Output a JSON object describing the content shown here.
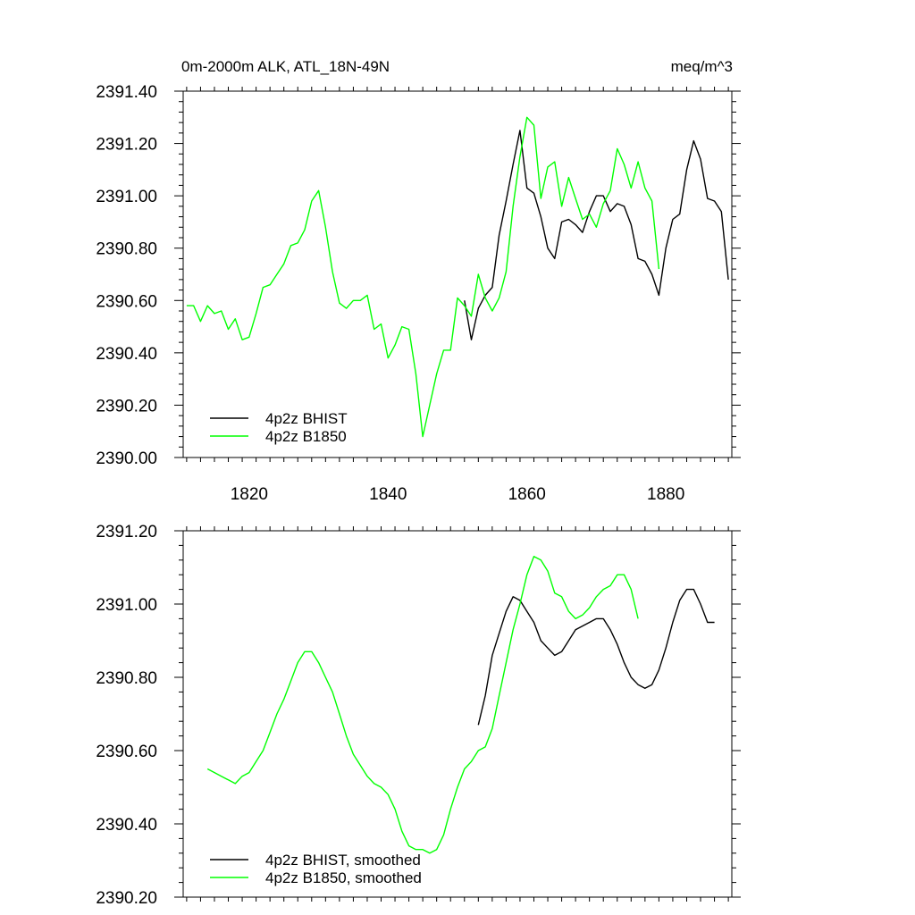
{
  "chart_data": [
    {
      "type": "line",
      "title_left": "0m-2000m ALK, ATL_18N-49N",
      "title_right": "meq/m^3",
      "xlim": [
        1810.5,
        1889.5
      ],
      "ylim": [
        2390.0,
        2391.4
      ],
      "xticks": [
        1820,
        1840,
        1860,
        1880
      ],
      "yticks": [
        "2390.00",
        "2390.20",
        "2390.40",
        "2390.60",
        "2390.80",
        "2391.00",
        "2391.20",
        "2391.40"
      ],
      "legend_position": "bottom-left",
      "series": [
        {
          "name": "4p2z BHIST",
          "color": "#000000",
          "x": [
            1851,
            1852,
            1853,
            1854,
            1855,
            1856,
            1857,
            1858,
            1859,
            1860,
            1861,
            1862,
            1863,
            1864,
            1865,
            1866,
            1867,
            1868,
            1869,
            1870,
            1871,
            1872,
            1873,
            1874,
            1875,
            1876,
            1877,
            1878,
            1879,
            1880,
            1881,
            1882,
            1883,
            1884,
            1885,
            1886,
            1887,
            1888,
            1889
          ],
          "y": [
            2390.6,
            2390.45,
            2390.57,
            2390.62,
            2390.65,
            2390.85,
            2390.98,
            2391.12,
            2391.25,
            2391.03,
            2391.01,
            2390.92,
            2390.8,
            2390.76,
            2390.9,
            2390.91,
            2390.89,
            2390.86,
            2390.94,
            2391.0,
            2391.0,
            2390.94,
            2390.97,
            2390.96,
            2390.89,
            2390.76,
            2390.75,
            2390.7,
            2390.62,
            2390.8,
            2390.91,
            2390.93,
            2391.1,
            2391.21,
            2391.14,
            2390.99,
            2390.98,
            2390.94,
            2390.68
          ]
        },
        {
          "name": "4p2z B1850",
          "color": "#00ff00",
          "x": [
            1811,
            1812,
            1813,
            1814,
            1815,
            1816,
            1817,
            1818,
            1819,
            1820,
            1821,
            1822,
            1823,
            1824,
            1825,
            1826,
            1827,
            1828,
            1829,
            1830,
            1831,
            1832,
            1833,
            1834,
            1835,
            1836,
            1837,
            1838,
            1839,
            1840,
            1841,
            1842,
            1843,
            1844,
            1845,
            1846,
            1847,
            1848,
            1849,
            1850,
            1851,
            1852,
            1853,
            1854,
            1855,
            1856,
            1857,
            1858,
            1859,
            1860,
            1861,
            1862,
            1863,
            1864,
            1865,
            1866,
            1867,
            1868,
            1869,
            1870,
            1871,
            1872,
            1873,
            1874,
            1875,
            1876,
            1877,
            1878,
            1879
          ],
          "y": [
            2390.58,
            2390.58,
            2390.52,
            2390.58,
            2390.55,
            2390.56,
            2390.49,
            2390.53,
            2390.45,
            2390.46,
            2390.55,
            2390.65,
            2390.66,
            2390.7,
            2390.74,
            2390.81,
            2390.82,
            2390.87,
            2390.98,
            2391.02,
            2390.88,
            2390.71,
            2390.59,
            2390.57,
            2390.6,
            2390.6,
            2390.62,
            2390.49,
            2390.51,
            2390.38,
            2390.43,
            2390.5,
            2390.49,
            2390.32,
            2390.08,
            2390.2,
            2390.32,
            2390.41,
            2390.41,
            2390.61,
            2390.58,
            2390.54,
            2390.7,
            2390.61,
            2390.56,
            2390.61,
            2390.71,
            2390.96,
            2391.15,
            2391.3,
            2391.27,
            2390.99,
            2391.11,
            2391.13,
            2390.96,
            2391.07,
            2390.99,
            2390.91,
            2390.93,
            2390.88,
            2390.97,
            2391.02,
            2391.18,
            2391.12,
            2391.03,
            2391.13,
            2391.03,
            2390.98,
            2390.72
          ]
        }
      ]
    },
    {
      "type": "line",
      "xlim": [
        1810.5,
        1889.5
      ],
      "ylim": [
        2390.2,
        2391.2
      ],
      "xticks": [
        1820,
        1840,
        1860,
        1880
      ],
      "yticks": [
        "2390.20",
        "2390.40",
        "2390.60",
        "2390.80",
        "2391.00",
        "2391.20"
      ],
      "legend_position": "bottom-left",
      "series": [
        {
          "name": "4p2z BHIST, smoothed",
          "color": "#000000",
          "x": [
            1853,
            1854,
            1855,
            1856,
            1857,
            1858,
            1859,
            1860,
            1861,
            1862,
            1863,
            1864,
            1865,
            1866,
            1867,
            1868,
            1869,
            1870,
            1871,
            1872,
            1873,
            1874,
            1875,
            1876,
            1877,
            1878,
            1879,
            1880,
            1881,
            1882,
            1883,
            1884,
            1885,
            1886,
            1887
          ],
          "y": [
            2390.67,
            2390.75,
            2390.86,
            2390.92,
            2390.98,
            2391.02,
            2391.01,
            2390.98,
            2390.95,
            2390.9,
            2390.88,
            2390.86,
            2390.87,
            2390.9,
            2390.93,
            2390.94,
            2390.95,
            2390.96,
            2390.96,
            2390.93,
            2390.89,
            2390.84,
            2390.8,
            2390.78,
            2390.77,
            2390.78,
            2390.82,
            2390.88,
            2390.95,
            2391.01,
            2391.04,
            2391.04,
            2391.0,
            2390.95,
            2390.95
          ]
        },
        {
          "name": "4p2z B1850, smoothed",
          "color": "#00ff00",
          "x": [
            1814,
            1815,
            1816,
            1817,
            1818,
            1819,
            1820,
            1821,
            1822,
            1823,
            1824,
            1825,
            1826,
            1827,
            1828,
            1829,
            1830,
            1831,
            1832,
            1833,
            1834,
            1835,
            1836,
            1837,
            1838,
            1839,
            1840,
            1841,
            1842,
            1843,
            1844,
            1845,
            1846,
            1847,
            1848,
            1849,
            1850,
            1851,
            1852,
            1853,
            1854,
            1855,
            1856,
            1857,
            1858,
            1859,
            1860,
            1861,
            1862,
            1863,
            1864,
            1865,
            1866,
            1867,
            1868,
            1869,
            1870,
            1871,
            1872,
            1873,
            1874,
            1875,
            1876
          ],
          "y": [
            2390.55,
            2390.54,
            2390.53,
            2390.52,
            2390.51,
            2390.53,
            2390.54,
            2390.57,
            2390.6,
            2390.65,
            2390.7,
            2390.74,
            2390.79,
            2390.84,
            2390.87,
            2390.87,
            2390.84,
            2390.8,
            2390.76,
            2390.7,
            2390.64,
            2390.59,
            2390.56,
            2390.53,
            2390.51,
            2390.5,
            2390.48,
            2390.44,
            2390.38,
            2390.34,
            2390.33,
            2390.33,
            2390.32,
            2390.33,
            2390.37,
            2390.44,
            2390.5,
            2390.55,
            2390.57,
            2390.6,
            2390.61,
            2390.66,
            2390.75,
            2390.84,
            2390.93,
            2391.0,
            2391.08,
            2391.13,
            2391.12,
            2391.09,
            2391.03,
            2391.02,
            2390.98,
            2390.96,
            2390.97,
            2390.99,
            2391.02,
            2391.04,
            2391.05,
            2391.08,
            2391.08,
            2391.04,
            2390.96
          ]
        }
      ]
    }
  ]
}
